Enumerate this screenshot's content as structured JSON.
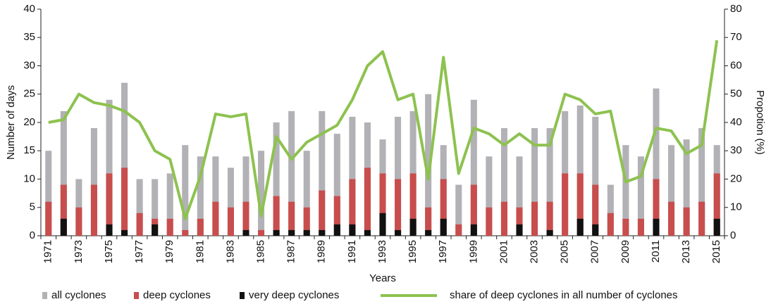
{
  "chart_data": {
    "type": "bar-line",
    "x_label": "Years",
    "y_label": "Number of days",
    "y2_label": "Propotion (%)",
    "categories": [
      "1971",
      null,
      "1973",
      null,
      "1975",
      null,
      "1977",
      null,
      "1979",
      null,
      "1981",
      null,
      "1983",
      null,
      "1985",
      null,
      "1987",
      null,
      "1989",
      null,
      "1991",
      null,
      "1993",
      null,
      "1995",
      null,
      "1997",
      null,
      "1999",
      null,
      "2001",
      null,
      "2003",
      null,
      "2005",
      null,
      "2007",
      null,
      "2009",
      null,
      "2011",
      null,
      "2013",
      null,
      "2015"
    ],
    "series": [
      {
        "name": "all cyclones",
        "color": "#b2b1b6",
        "type": "bar",
        "values": [
          15,
          22,
          10,
          19,
          24,
          27,
          10,
          10,
          11,
          16,
          14,
          14,
          12,
          14,
          15,
          20,
          22,
          15,
          22,
          18,
          21,
          20,
          17,
          21,
          22,
          25,
          16,
          9,
          24,
          14,
          19,
          14,
          19,
          19,
          22,
          23,
          21,
          9,
          16,
          14,
          26,
          16,
          17,
          19,
          16
        ]
      },
      {
        "name": "deep cyclones",
        "color": "#c84d4d",
        "type": "bar",
        "values": [
          6,
          9,
          5,
          9,
          11,
          12,
          4,
          3,
          3,
          1,
          3,
          6,
          5,
          6,
          1,
          7,
          6,
          5,
          8,
          7,
          10,
          12,
          11,
          10,
          11,
          5,
          10,
          2,
          9,
          5,
          6,
          5,
          6,
          6,
          11,
          11,
          9,
          4,
          3,
          3,
          10,
          6,
          5,
          6,
          11
        ]
      },
      {
        "name": "very deep cyclones",
        "color": "#111111",
        "type": "bar",
        "values": [
          0,
          3,
          0,
          0,
          2,
          1,
          0,
          2,
          0,
          0,
          0,
          0,
          0,
          1,
          0,
          1,
          1,
          1,
          1,
          2,
          2,
          1,
          4,
          1,
          3,
          1,
          3,
          0,
          2,
          0,
          0,
          2,
          0,
          1,
          0,
          3,
          2,
          0,
          0,
          0,
          3,
          0,
          0,
          0,
          3
        ]
      },
      {
        "name": "share of deep cyclones in all number of cyclones",
        "color": "#8dc24f",
        "type": "line",
        "axis": "y2",
        "values": [
          40,
          41,
          50,
          47,
          46,
          44,
          40,
          30,
          27,
          6,
          21,
          43,
          42,
          43,
          7,
          35,
          27,
          33,
          36,
          39,
          48,
          60,
          65,
          48,
          50,
          20,
          63,
          22,
          38,
          36,
          32,
          36,
          32,
          32,
          50,
          48,
          43,
          44,
          19,
          21,
          38,
          37,
          29,
          32,
          69
        ]
      }
    ],
    "ylim": [
      0,
      40
    ],
    "yticks": [
      0,
      5,
      10,
      15,
      20,
      25,
      30,
      35,
      40
    ],
    "y2lim": [
      0,
      80
    ],
    "y2ticks": [
      0,
      10,
      20,
      30,
      40,
      50,
      60,
      70,
      80
    ],
    "grid": false,
    "legend": "bottom"
  }
}
